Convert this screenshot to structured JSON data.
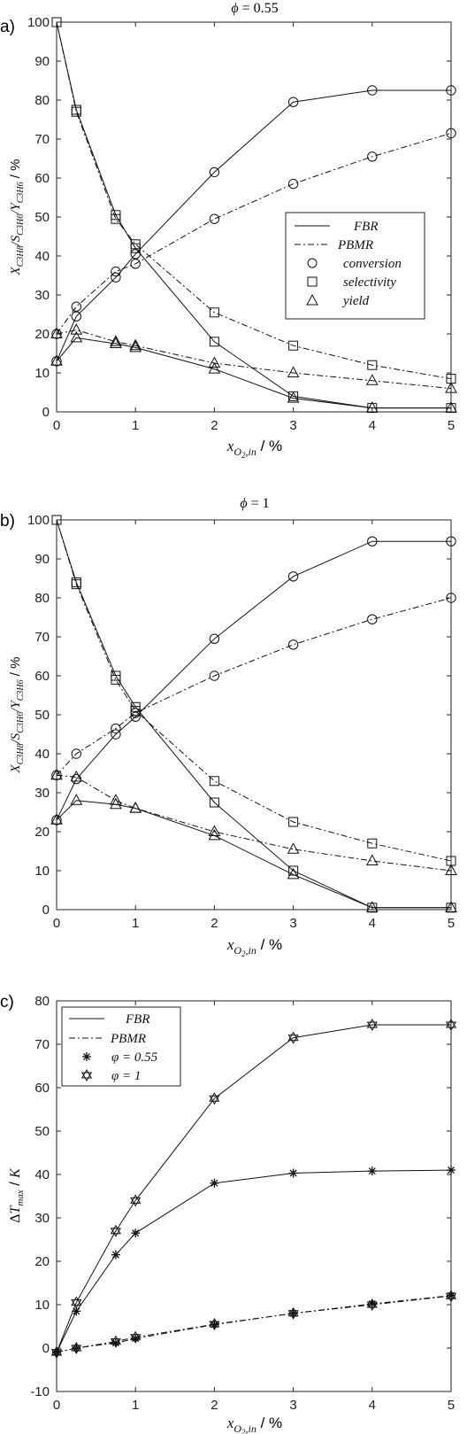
{
  "chart_data": [
    {
      "type": "line",
      "panel_label": "a)",
      "title": "φ = 0.55",
      "xlabel": "x_{O2,in}  /  %",
      "ylabel": "X_{C3H8}/S_{C3H6}/Y_{C3H6}  /  %",
      "xlim": [
        0,
        5
      ],
      "ylim": [
        0,
        100
      ],
      "xticks": [
        "0",
        "1",
        "2",
        "3",
        "4",
        "5"
      ],
      "yticks": [
        "0",
        "10",
        "20",
        "30",
        "40",
        "50",
        "60",
        "70",
        "80",
        "90",
        "100"
      ],
      "grid": false,
      "legend_position": "center-right",
      "legend": [
        "FBR",
        "PBMR",
        "conversion",
        "selectivity",
        "yield"
      ],
      "series": [
        {
          "name": "conversion",
          "reactor": "FBR",
          "marker": "circle",
          "x": [
            0,
            0.25,
            0.75,
            1,
            2,
            3,
            4,
            5
          ],
          "y": [
            13,
            24.5,
            34.5,
            40.5,
            61.5,
            79.5,
            82.5,
            82.5
          ]
        },
        {
          "name": "conversion",
          "reactor": "PBMR",
          "marker": "circle",
          "x": [
            0,
            0.25,
            0.75,
            1,
            2,
            3,
            4,
            5
          ],
          "y": [
            20,
            27,
            36,
            38,
            49.5,
            58.5,
            65.5,
            71.5
          ]
        },
        {
          "name": "selectivity",
          "reactor": "FBR",
          "marker": "square",
          "x": [
            0,
            0.25,
            0.75,
            1,
            2,
            3,
            4,
            5
          ],
          "y": [
            100,
            77.5,
            50.5,
            42,
            18,
            4,
            1,
            1
          ]
        },
        {
          "name": "selectivity",
          "reactor": "PBMR",
          "marker": "square",
          "x": [
            0,
            0.25,
            0.75,
            1,
            2,
            3,
            4,
            5
          ],
          "y": [
            100,
            77,
            49.5,
            43,
            25.5,
            17,
            12,
            8.5
          ]
        },
        {
          "name": "yield",
          "reactor": "FBR",
          "marker": "triangle",
          "x": [
            0,
            0.25,
            0.75,
            1,
            2,
            3,
            4,
            5
          ],
          "y": [
            13,
            19,
            17.5,
            16.5,
            11,
            3.5,
            1,
            1
          ]
        },
        {
          "name": "yield",
          "reactor": "PBMR",
          "marker": "triangle",
          "x": [
            0,
            0.25,
            0.75,
            1,
            2,
            3,
            4,
            5
          ],
          "y": [
            20,
            21,
            18,
            17,
            12.5,
            10,
            8,
            6
          ]
        }
      ]
    },
    {
      "type": "line",
      "panel_label": "b)",
      "title": "φ = 1",
      "xlabel": "x_{O2,in}  /  %",
      "ylabel": "X_{C3H8}/S_{C3H6}/Y_{C3H6}  /  %",
      "xlim": [
        0,
        5
      ],
      "ylim": [
        0,
        100
      ],
      "xticks": [
        "0",
        "1",
        "2",
        "3",
        "4",
        "5"
      ],
      "yticks": [
        "0",
        "10",
        "20",
        "30",
        "40",
        "50",
        "60",
        "70",
        "80",
        "90",
        "100"
      ],
      "grid": false,
      "series": [
        {
          "name": "conversion",
          "reactor": "FBR",
          "marker": "circle",
          "x": [
            0,
            0.25,
            0.75,
            1,
            2,
            3,
            4,
            5
          ],
          "y": [
            23,
            33.5,
            45,
            49.5,
            69.5,
            85.5,
            94.5,
            94.5
          ]
        },
        {
          "name": "conversion",
          "reactor": "PBMR",
          "marker": "circle",
          "x": [
            0,
            0.25,
            0.75,
            1,
            2,
            3,
            4,
            5
          ],
          "y": [
            34.5,
            40,
            46.5,
            50.5,
            60,
            68,
            74.5,
            80
          ]
        },
        {
          "name": "selectivity",
          "reactor": "FBR",
          "marker": "square",
          "x": [
            0,
            0.25,
            0.75,
            1,
            2,
            3,
            4,
            5
          ],
          "y": [
            100,
            84,
            60,
            52,
            27.5,
            10,
            0.5,
            0.5
          ]
        },
        {
          "name": "selectivity",
          "reactor": "PBMR",
          "marker": "square",
          "x": [
            0,
            0.25,
            0.75,
            1,
            2,
            3,
            4,
            5
          ],
          "y": [
            100,
            83.5,
            59,
            51,
            33,
            22.5,
            17,
            12.5
          ]
        },
        {
          "name": "yield",
          "reactor": "FBR",
          "marker": "triangle",
          "x": [
            0,
            0.25,
            0.75,
            1,
            2,
            3,
            4,
            5
          ],
          "y": [
            23,
            28,
            27,
            26,
            19,
            9,
            0.5,
            0.5
          ]
        },
        {
          "name": "yield",
          "reactor": "PBMR",
          "marker": "triangle",
          "x": [
            0,
            0.25,
            0.75,
            1,
            2,
            3,
            4,
            5
          ],
          "y": [
            34.5,
            34,
            28,
            26,
            20,
            15.5,
            12.5,
            10
          ]
        }
      ]
    },
    {
      "type": "line",
      "panel_label": "c)",
      "xlabel": "x_{O2,in}  /  %",
      "ylabel": "ΔT_{max}  /  K",
      "xlim": [
        0,
        5
      ],
      "ylim": [
        -10,
        80
      ],
      "xticks": [
        "0",
        "1",
        "2",
        "3",
        "4",
        "5"
      ],
      "yticks": [
        "-10",
        "0",
        "10",
        "20",
        "30",
        "40",
        "50",
        "60",
        "70",
        "80"
      ],
      "grid": false,
      "legend_position": "top-left",
      "legend": [
        "FBR",
        "PBMR",
        "φ = 0.55",
        "φ = 1"
      ],
      "series": [
        {
          "name": "φ = 0.55",
          "reactor": "FBR",
          "marker": "asterisk",
          "x": [
            0,
            0.25,
            0.75,
            1,
            2,
            3,
            4,
            5
          ],
          "y": [
            -1,
            8.5,
            21.5,
            26.5,
            38,
            40.3,
            40.8,
            41
          ]
        },
        {
          "name": "φ = 1",
          "reactor": "FBR",
          "marker": "hexagram",
          "x": [
            0,
            0.25,
            0.75,
            1,
            2,
            3,
            4,
            5
          ],
          "y": [
            -1,
            10.5,
            27,
            34,
            57.5,
            71.5,
            74.5,
            74.5
          ]
        },
        {
          "name": "φ = 0.55",
          "reactor": "PBMR",
          "marker": "asterisk",
          "x": [
            0,
            0.25,
            0.75,
            1,
            2,
            3,
            4,
            5
          ],
          "y": [
            -1,
            0,
            1.2,
            2.2,
            5.4,
            8,
            10.2,
            12.1
          ]
        },
        {
          "name": "φ = 1",
          "reactor": "PBMR",
          "marker": "hexagram",
          "x": [
            0,
            0.25,
            0.75,
            1,
            2,
            3,
            4,
            5
          ],
          "y": [
            -1,
            0,
            1.5,
            2.5,
            5.5,
            8,
            10,
            12
          ]
        }
      ]
    }
  ]
}
